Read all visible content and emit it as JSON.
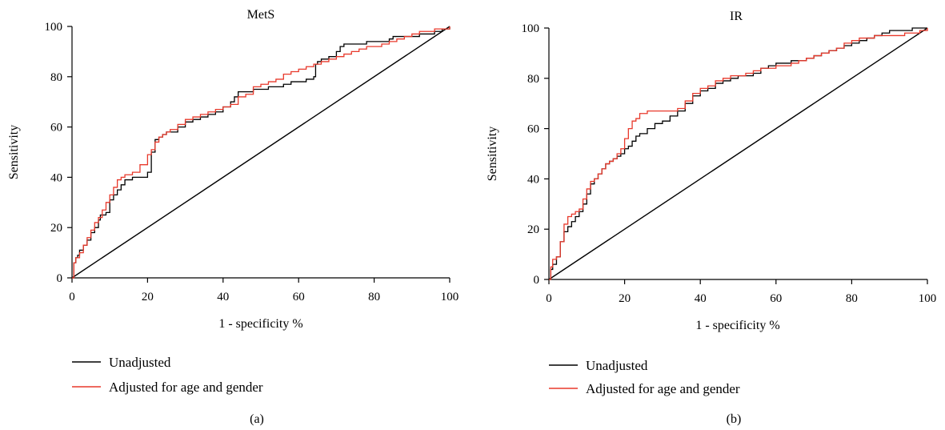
{
  "chart_data": [
    {
      "type": "line",
      "title": "MetS",
      "xlabel": "1 - specificity %",
      "ylabel": "Sensitivity",
      "caption": "(a)",
      "xlim": [
        0,
        100
      ],
      "ylim": [
        0,
        100
      ],
      "xticks": [
        "0",
        "20",
        "40",
        "60",
        "80",
        "100"
      ],
      "yticks": [
        "0",
        "20",
        "40",
        "60",
        "80",
        "100"
      ],
      "legend_position": "bottom-left",
      "reference_line": {
        "x": [
          0,
          100
        ],
        "y": [
          0,
          100
        ],
        "color": "#000000"
      },
      "series": [
        {
          "name": "Unadjusted",
          "color": "#000000",
          "x": [
            0,
            0.5,
            1,
            1.5,
            2,
            3,
            4,
            5,
            6,
            7,
            7.5,
            8,
            9,
            10,
            11,
            12,
            13,
            14,
            16,
            18,
            19,
            20,
            21,
            22,
            23,
            24,
            25,
            26,
            28,
            30,
            32,
            34,
            36,
            38,
            40,
            42,
            43,
            44,
            46,
            48,
            50,
            52,
            54,
            56,
            58,
            60,
            62,
            64,
            64.5,
            65,
            66,
            68,
            70,
            71,
            72,
            74,
            76,
            78,
            80,
            82,
            84,
            85,
            86,
            88,
            90,
            92,
            94,
            96,
            98,
            100
          ],
          "y": [
            0,
            6,
            8,
            9,
            11,
            13,
            15,
            18,
            20,
            23,
            25,
            25,
            26,
            31,
            33,
            35,
            37,
            39,
            40,
            40,
            40,
            42,
            50,
            55,
            56,
            57,
            58,
            58,
            60,
            62,
            63,
            64,
            65,
            66,
            68,
            70,
            72,
            74,
            74,
            75,
            75,
            76,
            76,
            77,
            78,
            78,
            79,
            80,
            85,
            86,
            87,
            88,
            90,
            92,
            93,
            93,
            93,
            94,
            94,
            94,
            95,
            96,
            96,
            96,
            96,
            97,
            97,
            98,
            99,
            100
          ]
        },
        {
          "name": "Adjusted for age and gender",
          "color": "#e8392b",
          "x": [
            0,
            0.5,
            1,
            2,
            3,
            4,
            5,
            6,
            7,
            8,
            9,
            10,
            11,
            12,
            13,
            14,
            16,
            18,
            20,
            21,
            22,
            23,
            24,
            25,
            26,
            28,
            30,
            32,
            34,
            36,
            38,
            40,
            42,
            44,
            46,
            48,
            50,
            52,
            54,
            56,
            58,
            60,
            62,
            64,
            66,
            68,
            70,
            72,
            74,
            76,
            78,
            80,
            82,
            84,
            86,
            88,
            90,
            92,
            94,
            96,
            98,
            100
          ],
          "y": [
            0,
            6,
            8,
            10,
            13,
            16,
            19,
            22,
            24,
            27,
            30,
            33,
            36,
            39,
            40,
            41,
            42,
            45,
            49,
            51,
            54,
            56,
            57,
            58,
            59,
            61,
            63,
            64,
            65,
            66,
            67,
            68,
            69,
            72,
            73,
            76,
            77,
            78,
            79,
            81,
            82,
            83,
            84,
            85,
            86,
            87,
            88,
            89,
            90,
            91,
            92,
            92,
            93,
            94,
            95,
            96,
            97,
            98,
            98,
            99,
            99,
            100
          ]
        }
      ]
    },
    {
      "type": "line",
      "title": "IR",
      "xlabel": "1 - specificity %",
      "ylabel": "Sensitivity",
      "caption": "(b)",
      "xlim": [
        0,
        100
      ],
      "ylim": [
        0,
        100
      ],
      "xticks": [
        "0",
        "20",
        "40",
        "60",
        "80",
        "100"
      ],
      "yticks": [
        "0",
        "20",
        "40",
        "60",
        "80",
        "100"
      ],
      "legend_position": "bottom-left",
      "reference_line": {
        "x": [
          0,
          100
        ],
        "y": [
          0,
          100
        ],
        "color": "#000000"
      },
      "series": [
        {
          "name": "Unadjusted",
          "color": "#000000",
          "x": [
            0,
            0.5,
            1,
            2,
            3,
            4,
            5,
            6,
            7,
            8,
            9,
            10,
            11,
            12,
            13,
            14,
            15,
            16,
            17,
            18,
            19,
            20,
            21,
            22,
            23,
            24,
            26,
            28,
            30,
            32,
            34,
            36,
            38,
            40,
            42,
            44,
            46,
            48,
            50,
            52,
            54,
            56,
            58,
            60,
            62,
            64,
            66,
            68,
            70,
            72,
            74,
            76,
            78,
            80,
            82,
            84,
            86,
            88,
            90,
            92,
            94,
            96,
            98,
            100
          ],
          "y": [
            0,
            4,
            6,
            9,
            15,
            19,
            21,
            23,
            25,
            27,
            30,
            34,
            38,
            40,
            42,
            44,
            46,
            47,
            48,
            49,
            50,
            52,
            53,
            55,
            57,
            58,
            60,
            62,
            63,
            65,
            67,
            70,
            73,
            75,
            76,
            78,
            79,
            80,
            81,
            81,
            82,
            84,
            85,
            86,
            86,
            87,
            87,
            88,
            89,
            90,
            91,
            92,
            93,
            94,
            95,
            96,
            97,
            98,
            99,
            99,
            99,
            100,
            100,
            100
          ]
        },
        {
          "name": "Adjusted for age and gender",
          "color": "#e8392b",
          "x": [
            0,
            0.5,
            1,
            2,
            3,
            4,
            5,
            6,
            7,
            8,
            9,
            10,
            11,
            12,
            13,
            14,
            15,
            16,
            17,
            18,
            19,
            20,
            21,
            22,
            23,
            24,
            26,
            28,
            30,
            32,
            34,
            36,
            38,
            40,
            42,
            44,
            46,
            48,
            50,
            52,
            54,
            56,
            58,
            60,
            62,
            64,
            66,
            68,
            70,
            72,
            74,
            76,
            78,
            80,
            82,
            84,
            86,
            88,
            90,
            92,
            94,
            96,
            98,
            100
          ],
          "y": [
            0,
            5,
            8,
            9,
            15,
            22,
            25,
            26,
            27,
            28,
            32,
            36,
            39,
            40,
            42,
            44,
            46,
            47,
            48,
            50,
            52,
            56,
            60,
            63,
            64,
            66,
            67,
            67,
            67,
            67,
            68,
            71,
            74,
            76,
            77,
            79,
            80,
            81,
            81,
            82,
            83,
            84,
            84,
            85,
            85,
            86,
            87,
            88,
            89,
            90,
            91,
            92,
            94,
            95,
            96,
            96,
            97,
            97,
            97,
            97,
            98,
            98,
            99,
            100
          ]
        }
      ]
    }
  ]
}
